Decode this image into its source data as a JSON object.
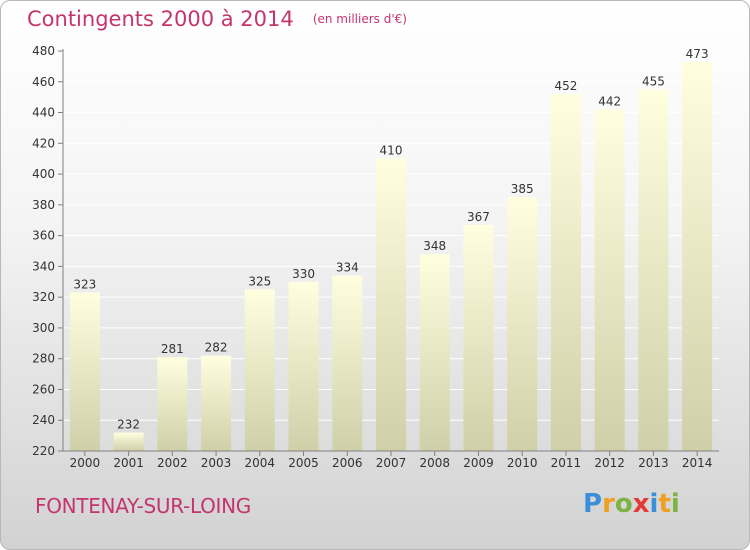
{
  "header": {
    "title": "Contingents 2000 à 2014",
    "subtitle": "(en milliers d'€)"
  },
  "footer": {
    "town": "FONTENAY-SUR-LOING",
    "logo": {
      "letters": [
        "P",
        "r",
        "o",
        "x",
        "i",
        "t",
        "i"
      ],
      "colors": [
        "#3a8fd8",
        "#f0a020",
        "#7cb342",
        "#e53935",
        "#3a8fd8",
        "#f0a020",
        "#7cb342"
      ]
    }
  },
  "chart_data": {
    "type": "bar",
    "categories": [
      "2000",
      "2001",
      "2002",
      "2003",
      "2004",
      "2005",
      "2006",
      "2007",
      "2008",
      "2009",
      "2010",
      "2011",
      "2012",
      "2013",
      "2014"
    ],
    "values": [
      323,
      232,
      281,
      282,
      325,
      330,
      334,
      410,
      348,
      367,
      385,
      452,
      442,
      455,
      473
    ],
    "title": "Contingents 2000 à 2014",
    "subtitle": "(en milliers d'€)",
    "ylim": [
      220,
      480
    ],
    "yticks": [
      220,
      240,
      260,
      280,
      300,
      320,
      340,
      360,
      380,
      400,
      420,
      440,
      460,
      480
    ],
    "grid": true,
    "colors": {
      "bar_top": "#ffffe0",
      "bar_bottom": "#cfcfa8",
      "grid": "#ffffff",
      "axis": "#808080"
    }
  }
}
